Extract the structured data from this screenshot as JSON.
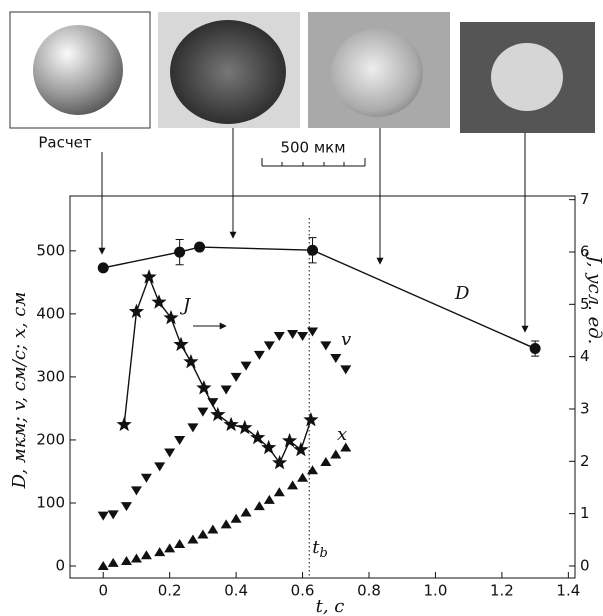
{
  "chart_data": {
    "type": "line",
    "xlabel": "t, с",
    "ylabel": "D, мкм; v, см/с; x, см",
    "y2label": "J, усл. ед.",
    "xlim": [
      -0.1,
      1.42
    ],
    "ylim": [
      -19,
      587
    ],
    "y2lim": [
      -0.23,
      7.07
    ],
    "xticks": [
      0,
      0.2,
      0.4,
      0.6,
      0.8,
      {
        "value": 1,
        "label": "1.0"
      },
      1.2,
      1.4
    ],
    "yticks": [
      0,
      100,
      200,
      300,
      400,
      500
    ],
    "y2ticks": [
      0,
      1,
      2,
      3,
      4,
      5,
      6,
      7
    ],
    "series": [
      {
        "name": "D",
        "color": "#111111",
        "marker": "circle",
        "line": true,
        "x": [
          0,
          0.23,
          0.29,
          0.63,
          1.3
        ],
        "values": [
          473,
          498,
          506,
          501,
          345
        ],
        "errors": [
          null,
          20,
          null,
          20,
          12
        ]
      },
      {
        "name": "J",
        "color": "#111111",
        "marker": "star",
        "line": true,
        "axis": "y2",
        "x": [
          0.063,
          0.1,
          0.138,
          0.168,
          0.204,
          0.234,
          0.264,
          0.303,
          0.345,
          0.385,
          0.426,
          0.465,
          0.498,
          0.531,
          0.561,
          0.595,
          0.625
        ],
        "values": [
          2.7,
          4.86,
          5.52,
          5.04,
          4.74,
          4.23,
          3.9,
          3.4,
          2.89,
          2.7,
          2.64,
          2.45,
          2.26,
          1.97,
          2.39,
          2.22,
          2.79
        ]
      },
      {
        "name": "v",
        "color": "#111111",
        "marker": "triangle-down",
        "line": false,
        "x": [
          0,
          0.03,
          0.07,
          0.1,
          0.13,
          0.17,
          0.2,
          0.23,
          0.27,
          0.3,
          0.33,
          0.37,
          0.4,
          0.43,
          0.47,
          0.5,
          0.53,
          0.57,
          0.6,
          0.63,
          0.67,
          0.7,
          0.73
        ],
        "values": [
          80,
          82,
          95,
          120,
          140,
          158,
          180,
          200,
          220,
          245,
          260,
          280,
          300,
          318,
          335,
          350,
          365,
          368,
          365,
          372,
          350,
          330,
          312
        ]
      },
      {
        "name": "x",
        "color": "#111111",
        "marker": "triangle-up",
        "line": false,
        "x": [
          0,
          0.03,
          0.07,
          0.1,
          0.13,
          0.17,
          0.2,
          0.23,
          0.27,
          0.3,
          0.33,
          0.37,
          0.4,
          0.43,
          0.47,
          0.5,
          0.53,
          0.57,
          0.6,
          0.63,
          0.67,
          0.7,
          0.73
        ],
        "values": [
          0,
          5,
          8,
          12,
          17,
          22,
          28,
          35,
          42,
          50,
          58,
          66,
          75,
          85,
          95,
          105,
          117,
          128,
          140,
          152,
          165,
          177,
          188
        ]
      }
    ],
    "vline": {
      "x": 0.62,
      "label": "t",
      "sub": "b"
    },
    "figure_labels": [
      "Расчет",
      "500 мкм"
    ]
  }
}
